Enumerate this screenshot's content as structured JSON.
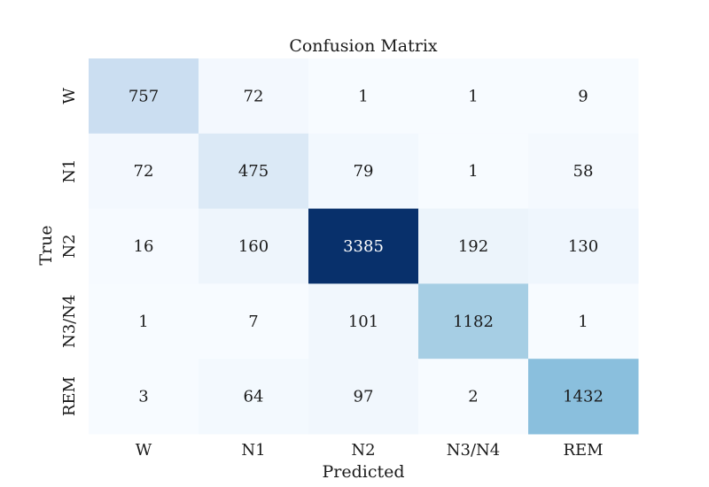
{
  "chart_data": {
    "type": "heatmap",
    "title": "Confusion Matrix",
    "xlabel": "Predicted",
    "ylabel": "True",
    "x_categories": [
      "W",
      "N1",
      "N2",
      "N3/N4",
      "REM"
    ],
    "y_categories": [
      "W",
      "N1",
      "N2",
      "N3/N4",
      "REM"
    ],
    "values": [
      [
        757,
        72,
        1,
        1,
        9
      ],
      [
        72,
        475,
        79,
        1,
        58
      ],
      [
        16,
        160,
        3385,
        192,
        130
      ],
      [
        1,
        7,
        101,
        1182,
        1
      ],
      [
        3,
        64,
        97,
        2,
        1432
      ]
    ],
    "colormap": "Blues",
    "color_range": [
      1,
      3385
    ],
    "colorbar": false,
    "grid": false
  }
}
